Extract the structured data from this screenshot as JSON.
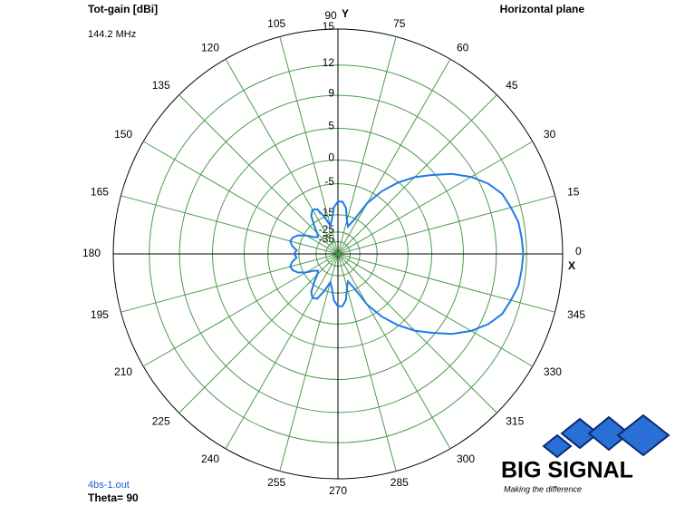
{
  "chart_data": {
    "type": "polar",
    "title": "Tot-gain [dBi]",
    "subtitle": "144.2 MHz",
    "plane": "Horizontal plane",
    "file": "4bs-1.out",
    "theta_label": "Theta= 90",
    "x_axis_label": "X",
    "y_axis_label": "Y",
    "radial_scale": "arrl-log",
    "rticks": [
      15,
      12,
      9,
      5,
      0,
      -5,
      -15,
      -25,
      -35
    ],
    "thetaticks": [
      0,
      15,
      30,
      45,
      60,
      75,
      90,
      105,
      120,
      135,
      150,
      165,
      180,
      195,
      210,
      225,
      240,
      255,
      270,
      285,
      300,
      315,
      330,
      345
    ],
    "grid": true,
    "grid_color": "#4f9a4f",
    "x": [
      0,
      5,
      10,
      15,
      20,
      25,
      30,
      35,
      40,
      45,
      50,
      55,
      60,
      65,
      70,
      75,
      80,
      85,
      90,
      95,
      100,
      105,
      110,
      115,
      120,
      125,
      130,
      135,
      140,
      145,
      150,
      155,
      160,
      165,
      170,
      175,
      180,
      185,
      190,
      195,
      200,
      205,
      210,
      215,
      220,
      225,
      230,
      235,
      240,
      245,
      250,
      255,
      260,
      265,
      270,
      275,
      280,
      285,
      290,
      295,
      300,
      305,
      310,
      315,
      320,
      325,
      330,
      335,
      340,
      345,
      350,
      355
    ],
    "series": [
      {
        "color": "#1f7be6",
        "values": [
          11.7,
          11.6,
          11.5,
          11.1,
          10.7,
          9.8,
          8.5,
          6.8,
          4.6,
          2.5,
          -0.2,
          -3.5,
          -8,
          -16,
          -20,
          -17,
          -12,
          -10,
          -10,
          -12,
          -17,
          -20,
          -15,
          -11,
          -10.5,
          -12,
          -16,
          -20,
          -22,
          -20,
          -16,
          -13,
          -11.5,
          -11,
          -12,
          -14,
          -13,
          -14,
          -12,
          -11,
          -11.5,
          -13,
          -16,
          -20,
          -22,
          -20,
          -16,
          -12,
          -10.5,
          -11,
          -15,
          -20,
          -17,
          -12,
          -10,
          -10,
          -12,
          -17,
          -20,
          -16,
          -8,
          -3.5,
          -0.2,
          2.5,
          4.6,
          6.8,
          8.5,
          9.8,
          10.7,
          11.1,
          11.5,
          11.6
        ]
      }
    ],
    "logo": {
      "name": "BIG SIGNAL",
      "tagline": "Making the difference"
    }
  }
}
